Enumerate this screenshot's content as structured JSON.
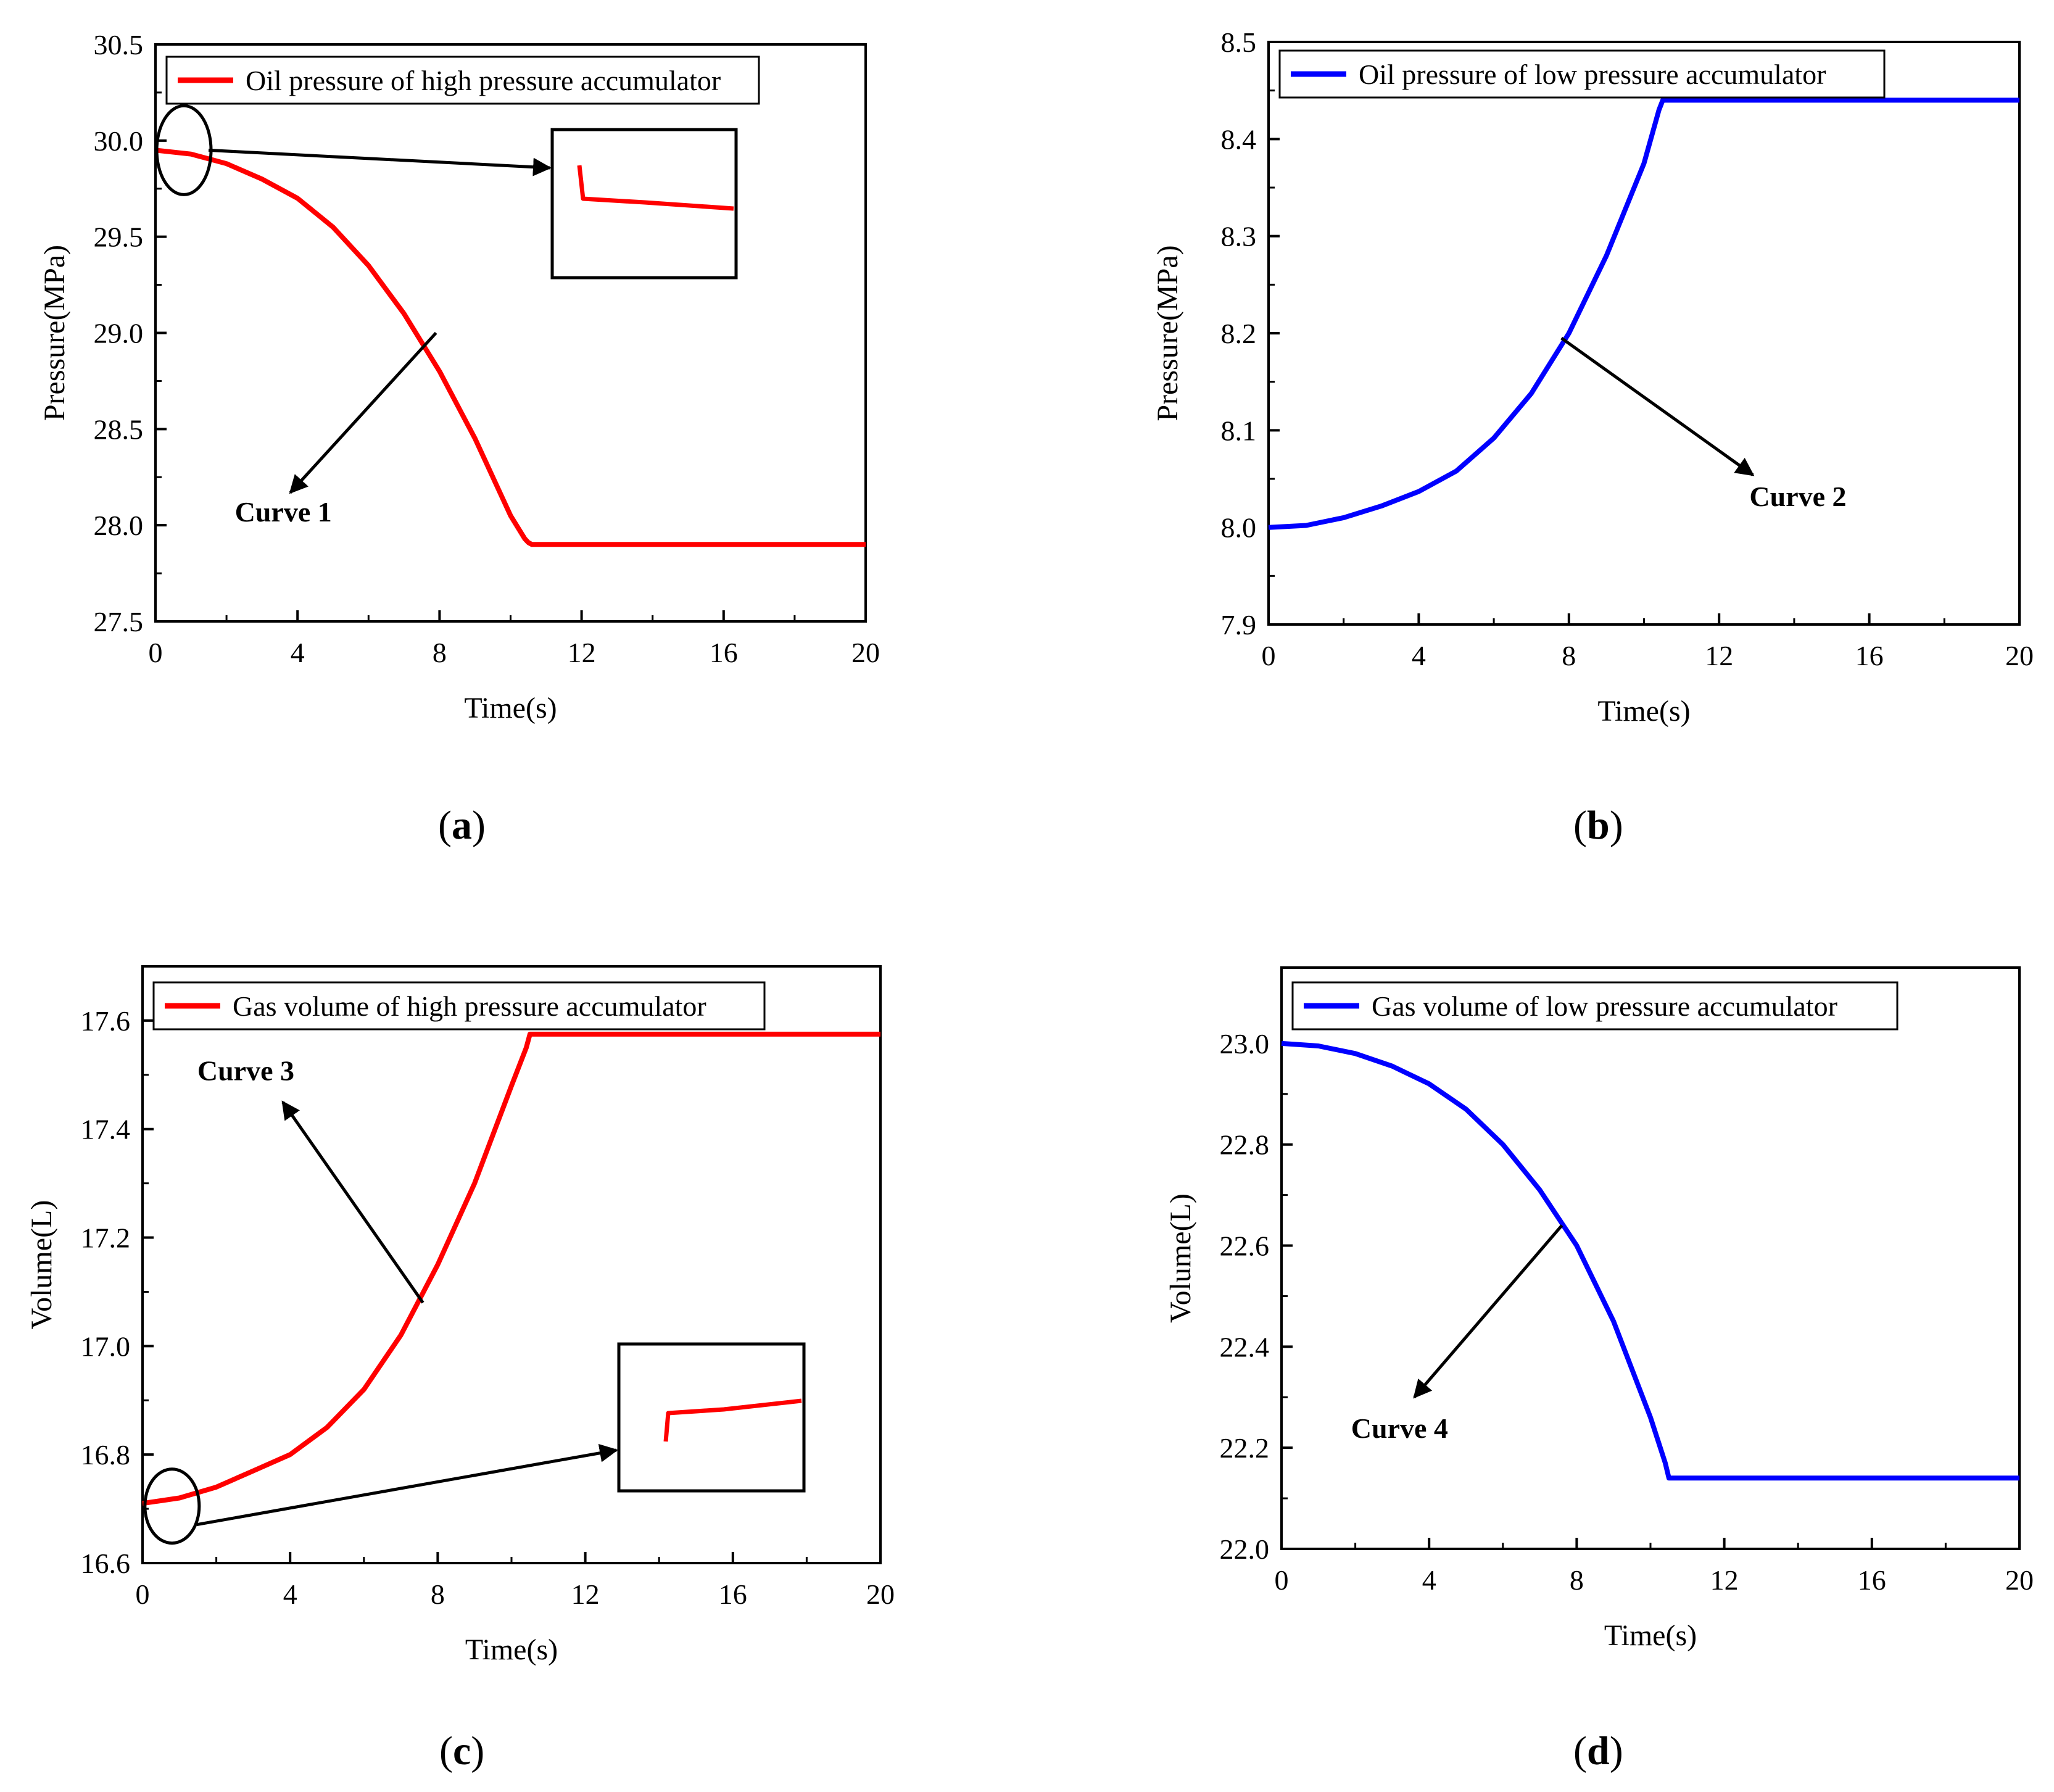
{
  "chart_data": [
    {
      "id": "a",
      "type": "line",
      "caption": "a",
      "xlabel": "Time(s)",
      "ylabel": "Pressure(MPa)",
      "xlim": [
        0,
        20
      ],
      "ylim": [
        27.5,
        30.5
      ],
      "xticks": [
        0,
        4,
        8,
        12,
        16,
        20
      ],
      "yticks": [
        "27.5",
        "28.0",
        "28.5",
        "29.0",
        "29.5",
        "30.0",
        "30.5"
      ],
      "legend": "Oil pressure of high pressure accumulator",
      "legend_position": "top-left",
      "series": [
        {
          "name": "Oil pressure of high pressure accumulator",
          "color": "#ff0000",
          "x": [
            0,
            1,
            2,
            3,
            4,
            5,
            6,
            7,
            8,
            9,
            10,
            10.4,
            10.5,
            10.6,
            12,
            14,
            16,
            18,
            20
          ],
          "y": [
            29.95,
            29.93,
            29.88,
            29.8,
            29.7,
            29.55,
            29.35,
            29.1,
            28.8,
            28.45,
            28.05,
            27.93,
            27.91,
            27.9,
            27.9,
            27.9,
            27.9,
            27.9,
            27.9
          ]
        }
      ],
      "annotation": {
        "text": "Curve 1",
        "arrow_from": [
          7.9,
          29.0
        ],
        "arrow_to": [
          3.8,
          28.17
        ],
        "label_at": [
          3.6,
          28.02
        ]
      },
      "highlight_circle": {
        "x": 0.8,
        "y": 29.95
      },
      "inset": {
        "arrow_to": "inset-box"
      }
    },
    {
      "id": "b",
      "type": "line",
      "caption": "b",
      "xlabel": "Time(s)",
      "ylabel": "Pressure(MPa)",
      "xlim": [
        0,
        20
      ],
      "ylim": [
        7.9,
        8.5
      ],
      "xticks": [
        0,
        4,
        8,
        12,
        16,
        20
      ],
      "yticks": [
        "7.9",
        "8.0",
        "8.1",
        "8.2",
        "8.3",
        "8.4",
        "8.5"
      ],
      "legend": "Oil pressure of low pressure accumulator",
      "legend_position": "top-left",
      "series": [
        {
          "name": "Oil pressure of low pressure accumulator",
          "color": "#0000ff",
          "x": [
            0,
            1,
            2,
            3,
            4,
            5,
            6,
            7,
            8,
            9,
            10,
            10.4,
            10.5,
            12,
            14,
            16,
            18,
            20
          ],
          "y": [
            8.0,
            8.002,
            8.01,
            8.022,
            8.037,
            8.058,
            8.092,
            8.138,
            8.2,
            8.28,
            8.375,
            8.43,
            8.44,
            8.44,
            8.44,
            8.44,
            8.44,
            8.44
          ]
        }
      ],
      "annotation": {
        "text": "Curve 2",
        "arrow_from": [
          7.8,
          8.195
        ],
        "arrow_to": [
          12.9,
          8.054
        ],
        "label_at": [
          14.1,
          8.022
        ]
      }
    },
    {
      "id": "c",
      "type": "line",
      "caption": "c",
      "xlabel": "Time(s)",
      "ylabel": "Volume(L)",
      "xlim": [
        0,
        20
      ],
      "ylim": [
        16.6,
        17.7
      ],
      "xticks": [
        0,
        4,
        8,
        12,
        16,
        20
      ],
      "yticks": [
        "16.6",
        "16.8",
        "17.0",
        "17.2",
        "17.4",
        "17.6"
      ],
      "legend": "Gas volume of high pressure accumulator",
      "legend_position": "top-left",
      "series": [
        {
          "name": "Gas volume of high pressure accumulator",
          "color": "#ff0000",
          "x": [
            0,
            1,
            2,
            3,
            4,
            5,
            6,
            7,
            8,
            9,
            10,
            10.4,
            10.5,
            12,
            14,
            16,
            18,
            20
          ],
          "y": [
            16.71,
            16.72,
            16.74,
            16.77,
            16.8,
            16.85,
            16.92,
            17.02,
            17.15,
            17.3,
            17.48,
            17.55,
            17.575,
            17.575,
            17.575,
            17.575,
            17.575,
            17.575
          ]
        }
      ],
      "annotation": {
        "text": "Curve 3",
        "arrow_from": [
          7.6,
          17.08
        ],
        "arrow_to": [
          3.8,
          17.45
        ],
        "label_at": [
          2.8,
          17.49
        ]
      },
      "highlight_circle": {
        "x": 0.8,
        "y": 16.705
      },
      "inset": {
        "arrow_to": "inset-box"
      }
    },
    {
      "id": "d",
      "type": "line",
      "caption": "d",
      "xlabel": "Time(s)",
      "ylabel": "Volume(L)",
      "xlim": [
        0,
        20
      ],
      "ylim": [
        22.0,
        23.15
      ],
      "xticks": [
        0,
        4,
        8,
        12,
        16,
        20
      ],
      "yticks": [
        "22.0",
        "22.2",
        "22.4",
        "22.6",
        "22.8",
        "23.0"
      ],
      "legend": "Gas volume of low pressure accumulator",
      "legend_position": "top-left",
      "series": [
        {
          "name": "Gas volume of low pressure accumulator",
          "color": "#0000ff",
          "x": [
            0,
            1,
            2,
            3,
            4,
            5,
            6,
            7,
            8,
            9,
            10,
            10.4,
            10.5,
            12,
            14,
            16,
            18,
            20
          ],
          "y": [
            23.0,
            22.995,
            22.98,
            22.955,
            22.92,
            22.87,
            22.8,
            22.71,
            22.6,
            22.45,
            22.26,
            22.17,
            22.14,
            22.14,
            22.14,
            22.14,
            22.14,
            22.14
          ]
        }
      ],
      "annotation": {
        "text": "Curve 4",
        "arrow_from": [
          7.6,
          22.64
        ],
        "arrow_to": [
          3.6,
          22.3
        ],
        "label_at": [
          3.2,
          22.22
        ]
      }
    }
  ]
}
